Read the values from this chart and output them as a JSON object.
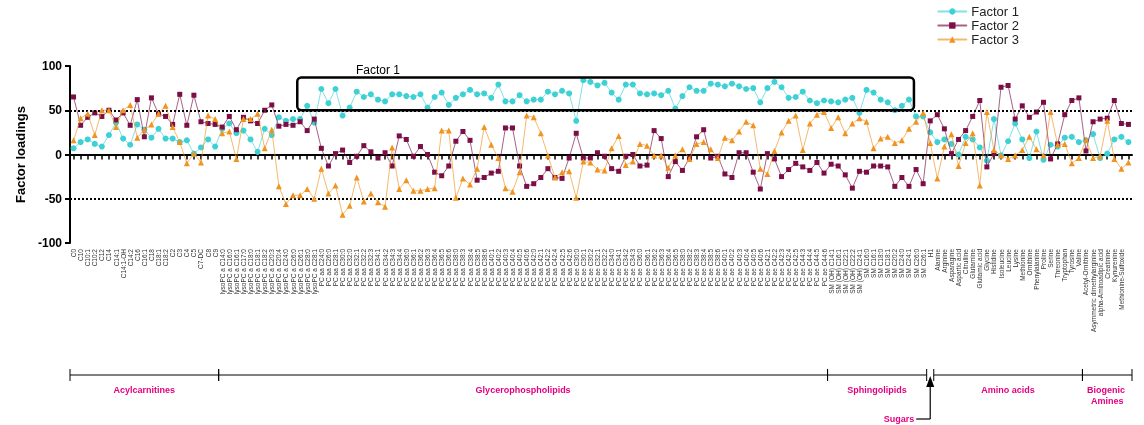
{
  "chart_data": {
    "type": "line",
    "ylabel": "Factor loadings",
    "categories": [
      "C0",
      "C10",
      "C10:1",
      "C10:2",
      "C12",
      "C14",
      "C14:1",
      "C14:1-OH",
      "C14:2",
      "C16",
      "C16:1",
      "C18",
      "C18:1",
      "C18:2",
      "C2",
      "C3",
      "C4",
      "C5",
      "C7-DC",
      "C8",
      "C9",
      "lysoPC a C14:0",
      "lysoPC a C16:0",
      "lysoPC a C16:1",
      "lysoPC a C17:0",
      "lysoPC a C18:0",
      "lysoPC a C18:1",
      "lysoPC a C18:2",
      "lysoPC a C20:3",
      "lysoPC a C20:4",
      "lysoPC a C24:0",
      "lysoPC a C26:0",
      "lysoPC a C26:1",
      "lysoPC a C28:0",
      "lysoPC a C28:1",
      "PC aa C24:0",
      "PC aa C26:0",
      "PC aa C28:1",
      "PC aa C30:0",
      "PC aa C32:0",
      "PC aa C32:1",
      "PC aa C32:2",
      "PC aa C32:3",
      "PC aa C34:1",
      "PC aa C34:2",
      "PC aa C34:3",
      "PC aa C34:4",
      "PC aa C36:0",
      "PC aa C36:1",
      "PC aa C36:2",
      "PC aa C36:3",
      "PC aa C36:4",
      "PC aa C36:5",
      "PC aa C36:6",
      "PC aa C38:0",
      "PC aa C38:3",
      "PC aa C38:4",
      "PC aa C38:5",
      "PC aa C38:6",
      "PC aa C40:1",
      "PC aa C40:2",
      "PC aa C40:3",
      "PC aa C40:4",
      "PC aa C40:5",
      "PC aa C40:6",
      "PC aa C42:0",
      "PC aa C42:1",
      "PC aa C42:2",
      "PC aa C42:4",
      "PC aa C42:5",
      "PC aa C42:6",
      "PC ae C30:0",
      "PC ae C30:1",
      "PC ae C30:2",
      "PC ae C32:1",
      "PC ae C32:2",
      "PC ae C34:0",
      "PC ae C34:1",
      "PC ae C34:2",
      "PC ae C34:3",
      "PC ae C36:0",
      "PC ae C36:1",
      "PC ae C36:2",
      "PC ae C36:3",
      "PC ae C36:4",
      "PC ae C36:5",
      "PC ae C38:0",
      "PC ae C38:2",
      "PC ae C38:3",
      "PC ae C38:4",
      "PC ae C38:5",
      "PC ae C38:6",
      "PC ae C40:1",
      "PC ae C40:2",
      "PC ae C40:3",
      "PC ae C40:4",
      "PC ae C40:5",
      "PC ae C40:6",
      "PC ae C42:1",
      "PC ae C42:2",
      "PC ae C42:3",
      "PC ae C42:4",
      "PC ae C42:5",
      "PC ae C44:3",
      "PC ae C44:4",
      "PC ae C44:5",
      "PC ae C44:6",
      "SM (OH) C14:1",
      "SM (OH) C16:1",
      "SM (OH) C22:1",
      "SM (OH) C22:2",
      "SM (OH) C24:1",
      "SM C16:0",
      "SM C16:1",
      "SM C18:0",
      "SM C18:1",
      "SM C20:2",
      "SM C24:0",
      "SM C24:1",
      "SM C26:0",
      "SM C26:1",
      "H1",
      "Alanine",
      "Arginine",
      "Asparagine",
      "Aspartic acid",
      "Citrulline",
      "Glutamine",
      "Glutamic acid",
      "Glycine",
      "Histidine",
      "Isoleucine",
      "Leucine",
      "Lysine",
      "Methionine",
      "Ornithine",
      "Phenylalanine",
      "Proline",
      "Serine",
      "Threonine",
      "Tryptophan",
      "Tyrosine",
      "Valine",
      "Acetyl-Ornithine",
      "Asymmetric dimethylarginine",
      "alpha-Aminoadipic acid",
      "Creatinine",
      "Kynurenine",
      "Methionine-Sulfoxide",
      null
    ],
    "series": [
      {
        "name": "Factor 1",
        "color": "#3dd1d6",
        "marker": "circle",
        "values": [
          7,
          14,
          17,
          12,
          9,
          22,
          36,
          18,
          11,
          34,
          28,
          19,
          29,
          18,
          18,
          14,
          16,
          1,
          8,
          17,
          9,
          29,
          35,
          24,
          27,
          17,
          3,
          29,
          22,
          42,
          38,
          40,
          40,
          55,
          36,
          74,
          58,
          74,
          44,
          53,
          71,
          65,
          68,
          62,
          60,
          68,
          68,
          66,
          65,
          68,
          53,
          65,
          70,
          56,
          64,
          68,
          73,
          68,
          69,
          64,
          79,
          60,
          60,
          67,
          60,
          62,
          62,
          71,
          68,
          72,
          69,
          38,
          84,
          82,
          78,
          81,
          70,
          62,
          79,
          79,
          69,
          68,
          69,
          67,
          72,
          52,
          66,
          76,
          72,
          72,
          80,
          79,
          77,
          80,
          77,
          74,
          75,
          59,
          75,
          82,
          76,
          64,
          65,
          71,
          61,
          58,
          61,
          60,
          59,
          62,
          64,
          47,
          73,
          70,
          62,
          59,
          50,
          55,
          62,
          43,
          43,
          25,
          14,
          17,
          12,
          0,
          20,
          17,
          8,
          -7,
          40,
          -1,
          15,
          35,
          17,
          -4,
          26,
          -6,
          11,
          9,
          19,
          20,
          14,
          16,
          23,
          -4,
          1,
          17,
          20,
          14
        ]
      },
      {
        "name": "Factor 2",
        "color": "#7a0e45",
        "marker": "square",
        "values": [
          65,
          33,
          42,
          47,
          43,
          50,
          39,
          47,
          33,
          62,
          20,
          64,
          46,
          43,
          34,
          68,
          33,
          67,
          37,
          35,
          34,
          31,
          43,
          28,
          42,
          38,
          35,
          50,
          56,
          32,
          34,
          33,
          37,
          27,
          40,
          7,
          -13,
          1,
          5,
          -9,
          -2,
          10,
          3,
          -4,
          2,
          -13,
          21,
          17,
          -2,
          9,
          0,
          -20,
          -24,
          -13,
          15,
          26,
          16,
          -29,
          -26,
          -21,
          -19,
          30,
          30,
          -13,
          -36,
          -33,
          -26,
          -16,
          -26,
          -27,
          -4,
          24,
          -4,
          -4,
          2,
          -2,
          -16,
          -19,
          -2,
          0,
          -13,
          -12,
          27,
          18,
          -25,
          -8,
          -18,
          -4,
          20,
          28,
          -4,
          -2,
          -22,
          -26,
          2,
          2,
          -20,
          -39,
          1,
          -5,
          -25,
          -17,
          -10,
          -14,
          -18,
          -9,
          -21,
          -11,
          -13,
          -23,
          -38,
          -19,
          -20,
          -13,
          -13,
          -14,
          -36,
          -26,
          -36,
          -17,
          -33,
          38,
          45,
          29,
          1,
          17,
          27,
          43,
          61,
          -14,
          1,
          76,
          78,
          40,
          55,
          42,
          48,
          59,
          -5,
          12,
          45,
          61,
          64,
          4,
          37,
          40,
          41,
          61,
          35,
          34
        ]
      },
      {
        "name": "Factor 3",
        "color": "#f0931f",
        "marker": "triangle",
        "values": [
          16,
          41,
          46,
          22,
          50,
          50,
          31,
          50,
          56,
          19,
          28,
          34,
          46,
          55,
          31,
          14,
          -10,
          1,
          -9,
          44,
          40,
          24,
          26,
          -5,
          40,
          40,
          46,
          7,
          28,
          -36,
          -56,
          -46,
          -46,
          -39,
          -50,
          -16,
          -44,
          -35,
          -68,
          -58,
          -26,
          -53,
          -44,
          -54,
          -59,
          8,
          -39,
          -29,
          -41,
          -41,
          -39,
          -38,
          27,
          27,
          -49,
          -27,
          -34,
          -16,
          31,
          11,
          -4,
          -38,
          -42,
          -20,
          44,
          42,
          24,
          -1,
          -26,
          -20,
          -19,
          -49,
          -8,
          -9,
          -17,
          -18,
          7,
          21,
          -12,
          -8,
          12,
          10,
          -1,
          -1,
          -15,
          -1,
          6,
          -5,
          12,
          14,
          6,
          -4,
          19,
          16,
          26,
          37,
          33,
          -16,
          -22,
          4,
          25,
          38,
          44,
          5,
          35,
          45,
          48,
          30,
          42,
          24,
          35,
          41,
          37,
          7,
          18,
          20,
          13,
          16,
          29,
          37,
          47,
          13,
          -27,
          9,
          23,
          -13,
          13,
          24,
          -35,
          48,
          5,
          -1,
          -5,
          -1,
          5,
          20,
          6,
          -1,
          48,
          11,
          12,
          -10,
          -4,
          17,
          -4,
          -2,
          38,
          -5,
          -16,
          -9
        ]
      }
    ],
    "ylim": [
      -100,
      100
    ],
    "yticks": [
      -100,
      -50,
      0,
      50,
      100
    ],
    "grid": false,
    "legend": "top right",
    "line_style": "solid",
    "ref_lines": [
      {
        "axis": "y",
        "value": 50,
        "color": "#000000",
        "line_style": "dotted"
      },
      {
        "axis": "y",
        "value": -50,
        "color": "#000000",
        "line_style": "dotted"
      }
    ],
    "annotations": [
      "Factor 1",
      "Acylcarnitines",
      "Glycerophospholipids",
      "Sphingolipids",
      "Sugars",
      "Amino acids",
      "Biogenic Amines"
    ]
  }
}
